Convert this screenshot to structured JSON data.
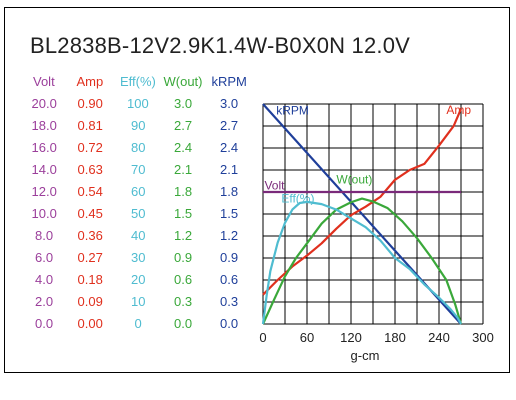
{
  "chart_data": {
    "type": "line",
    "title": "BL2838B-12V2.9K1.4W-B0X0N   12.0V",
    "xlabel": "g-cm",
    "xlim": [
      0,
      300
    ],
    "x_ticks": [
      "0",
      "60",
      "120",
      "180",
      "240",
      "300"
    ],
    "grid": true,
    "axes": [
      {
        "name": "Volt",
        "color": "#9b3f9b",
        "ticks": [
          "0.0",
          "2.0",
          "4.0",
          "6.0",
          "8.0",
          "10.0",
          "12.0",
          "14.0",
          "16.0",
          "18.0",
          "20.0"
        ],
        "range": [
          0,
          20
        ]
      },
      {
        "name": "Amp",
        "color": "#e0301e",
        "ticks": [
          "0.00",
          "0.09",
          "0.18",
          "0.27",
          "0.36",
          "0.45",
          "0.54",
          "0.63",
          "0.72",
          "0.81",
          "0.90"
        ],
        "range": [
          0,
          0.9
        ]
      },
      {
        "name": "Eff(%)",
        "color": "#4fbcd0",
        "ticks": [
          "0",
          "10",
          "20",
          "30",
          "40",
          "50",
          "60",
          "70",
          "80",
          "90",
          "100"
        ],
        "range": [
          0,
          100
        ]
      },
      {
        "name": "W(out)",
        "color": "#3aa83a",
        "ticks": [
          "0.0",
          "0.3",
          "0.6",
          "0.9",
          "1.2",
          "1.5",
          "1.8",
          "2.1",
          "2.4",
          "2.7",
          "3.0"
        ],
        "range": [
          0,
          3
        ]
      },
      {
        "name": "kRPM",
        "color": "#1f3f9a",
        "ticks": [
          "0.0",
          "0.3",
          "0.6",
          "0.9",
          "1.2",
          "1.5",
          "1.8",
          "2.1",
          "2.4",
          "2.7",
          "3.0"
        ],
        "range": [
          0,
          3
        ]
      }
    ],
    "series": [
      {
        "name": "kRPM",
        "color": "#1f3f9a",
        "axis": 4,
        "label_at": [
          18,
          2.91
        ],
        "x": [
          0,
          270
        ],
        "y": [
          3.0,
          0.0
        ]
      },
      {
        "name": "Amp",
        "color": "#e0301e",
        "axis": 1,
        "label_at": [
          250,
          0.875
        ],
        "x": [
          0,
          20,
          40,
          60,
          80,
          100,
          120,
          140,
          160,
          180,
          200,
          220,
          240,
          260,
          270
        ],
        "y": [
          0.12,
          0.18,
          0.235,
          0.28,
          0.33,
          0.39,
          0.445,
          0.48,
          0.52,
          0.59,
          0.63,
          0.655,
          0.73,
          0.81,
          0.88
        ]
      },
      {
        "name": "W(out)",
        "color": "#3aa83a",
        "axis": 3,
        "label_at": [
          100,
          1.97
        ],
        "x": [
          0,
          15,
          30,
          45,
          60,
          80,
          100,
          120,
          135,
          150,
          170,
          190,
          210,
          230,
          250,
          262,
          270
        ],
        "y": [
          0.0,
          0.33,
          0.65,
          0.9,
          1.1,
          1.37,
          1.56,
          1.66,
          1.71,
          1.67,
          1.58,
          1.4,
          1.17,
          0.9,
          0.6,
          0.27,
          0.0
        ]
      },
      {
        "name": "Eff(%)",
        "color": "#4fbcd0",
        "axis": 2,
        "label_at": [
          25,
          57
        ],
        "x": [
          0,
          5,
          10,
          20,
          30,
          40,
          50,
          60,
          80,
          100,
          120,
          140,
          160,
          180,
          200,
          220,
          240,
          255,
          265,
          270
        ],
        "y": [
          0,
          13,
          24,
          37,
          46,
          52,
          55,
          55.5,
          54.5,
          52,
          48,
          44,
          38,
          30,
          25,
          18,
          12,
          7,
          3,
          0
        ]
      },
      {
        "name": "Volt",
        "color": "#7a2a7a",
        "axis": 0,
        "label_at": [
          2,
          12.6
        ],
        "x": [
          0,
          270
        ],
        "y": [
          12.0,
          12.0
        ]
      }
    ]
  }
}
